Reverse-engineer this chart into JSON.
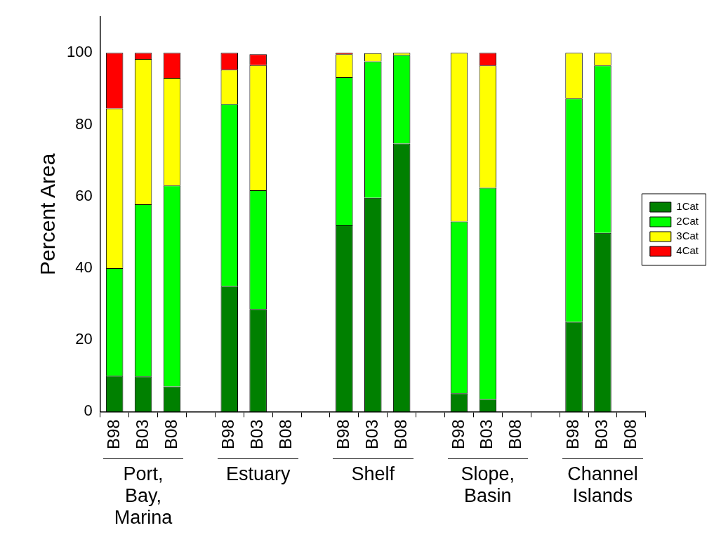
{
  "chart_data": {
    "type": "bar",
    "stacked": true,
    "ylabel": "Percent Area",
    "categories": [
      "B98",
      "B03",
      "B08",
      null,
      "B98",
      "B03",
      "B08",
      null,
      "B98",
      "B03",
      "B08",
      null,
      "B98",
      "B03",
      "B08",
      null,
      "B98",
      "B03",
      "B08"
    ],
    "series": [
      {
        "name": "1Cat",
        "color": "#008000",
        "values": [
          10,
          9.8,
          7,
          null,
          35,
          28.6,
          null,
          null,
          51.9,
          59.6,
          74.7,
          null,
          5.1,
          3.5,
          null,
          null,
          25,
          49.8,
          null
        ]
      },
      {
        "name": "2Cat",
        "color": "#00ff00",
        "values": [
          30,
          48,
          56,
          null,
          50.7,
          33.1,
          null,
          null,
          41.3,
          38,
          24.7,
          null,
          47.9,
          58.9,
          null,
          null,
          62.3,
          46.7,
          null
        ]
      },
      {
        "name": "3Cat",
        "color": "#ffff00",
        "values": [
          44.5,
          40.5,
          30,
          null,
          9.6,
          34.9,
          null,
          null,
          6.4,
          2.3,
          0.6,
          null,
          47,
          34.1,
          null,
          null,
          12.7,
          3.5,
          null
        ]
      },
      {
        "name": "4Cat",
        "color": "#ff0000",
        "values": [
          15.5,
          1.7,
          7,
          null,
          4.7,
          3,
          null,
          null,
          0.4,
          0,
          0,
          null,
          0,
          3.5,
          null,
          null,
          0,
          0,
          null
        ]
      }
    ],
    "ylim": [
      0,
      110
    ],
    "yticks": [
      0,
      20,
      40,
      60,
      80,
      100
    ],
    "grid": false,
    "legend": "right",
    "annotations": [
      "Port, Bay, Marina",
      "Estuary",
      "Shelf",
      "Slope, Basin",
      "Channel Islands"
    ]
  }
}
